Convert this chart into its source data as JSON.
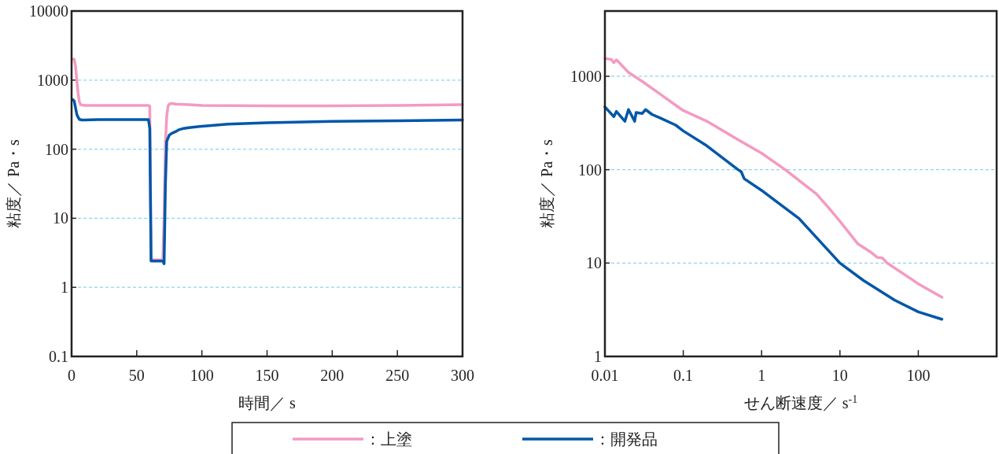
{
  "chart_data": [
    {
      "type": "line",
      "xlabel": "時間／ s",
      "ylabel": "粘度／ Pa・s",
      "log": "y",
      "grid": "y",
      "legend": "bottom",
      "line_style": "solid",
      "xlim": [
        0,
        300
      ],
      "xticks": [
        0,
        50,
        100,
        150,
        200,
        250,
        300
      ],
      "ylim": [
        0.1,
        10000
      ],
      "yticks": [
        0.1,
        1,
        10,
        100,
        1000,
        10000
      ],
      "series": [
        {
          "name": "：上塗",
          "color": "#f49ac1",
          "x": [
            1,
            2,
            3,
            4,
            5,
            6,
            7,
            10,
            20,
            30,
            40,
            50,
            59,
            60,
            61,
            65,
            70,
            71,
            72,
            73,
            74,
            75,
            77,
            80,
            90,
            100,
            150,
            200,
            250,
            300
          ],
          "values": [
            2000,
            2000,
            1600,
            1000,
            650,
            480,
            440,
            430,
            430,
            430,
            430,
            430,
            430,
            420,
            2.5,
            2.5,
            2.5,
            10,
            120,
            300,
            420,
            450,
            460,
            450,
            440,
            430,
            425,
            425,
            430,
            440
          ]
        },
        {
          "name": "：開発品",
          "color": "#0057a8",
          "x": [
            1,
            2,
            3,
            4,
            5,
            6,
            8,
            10,
            20,
            30,
            40,
            50,
            59,
            60,
            61,
            65,
            70,
            71,
            72,
            73,
            75,
            77,
            80,
            82,
            86,
            90,
            100,
            120,
            150,
            200,
            250,
            300
          ],
          "values": [
            520,
            500,
            400,
            320,
            290,
            270,
            265,
            265,
            268,
            268,
            268,
            268,
            268,
            200,
            2.4,
            2.4,
            2.4,
            2.2,
            30,
            130,
            160,
            170,
            180,
            190,
            200,
            205,
            215,
            230,
            242,
            252,
            258,
            265
          ]
        }
      ]
    },
    {
      "type": "line",
      "xlabel": "せん断速度／ s$^{-1}$",
      "ylabel": "粘度／ Pa・s",
      "log": "xy",
      "grid": "y",
      "line_style": "solid",
      "xlim": [
        0.01,
        1000
      ],
      "xticks": [
        0.01,
        0.1,
        1,
        10,
        100
      ],
      "ylim": [
        1,
        5000
      ],
      "yticks": [
        1,
        10,
        100,
        1000
      ],
      "series": [
        {
          "color": "#f49ac1",
          "x": [
            0.01,
            0.012,
            0.013,
            0.014,
            0.015,
            0.02,
            0.03,
            0.05,
            0.08,
            0.1,
            0.2,
            0.5,
            1,
            2,
            5,
            7,
            10,
            17,
            25,
            30,
            35,
            40,
            100,
            200
          ],
          "values": [
            1550,
            1520,
            1400,
            1500,
            1420,
            1100,
            880,
            650,
            490,
            430,
            330,
            210,
            150,
            100,
            55,
            40,
            28,
            16,
            13,
            11.5,
            11.3,
            10,
            6,
            4.3
          ]
        },
        {
          "color": "#0057a8",
          "x": [
            0.01,
            0.013,
            0.014,
            0.018,
            0.02,
            0.024,
            0.025,
            0.03,
            0.033,
            0.04,
            0.05,
            0.08,
            0.1,
            0.2,
            0.5,
            0.55,
            0.6,
            1,
            3,
            10,
            20,
            50,
            100,
            200
          ],
          "values": [
            470,
            370,
            420,
            330,
            440,
            330,
            410,
            400,
            440,
            390,
            360,
            300,
            260,
            180,
            100,
            95,
            80,
            60,
            30,
            10,
            6.5,
            4,
            3,
            2.5
          ]
        }
      ]
    }
  ]
}
